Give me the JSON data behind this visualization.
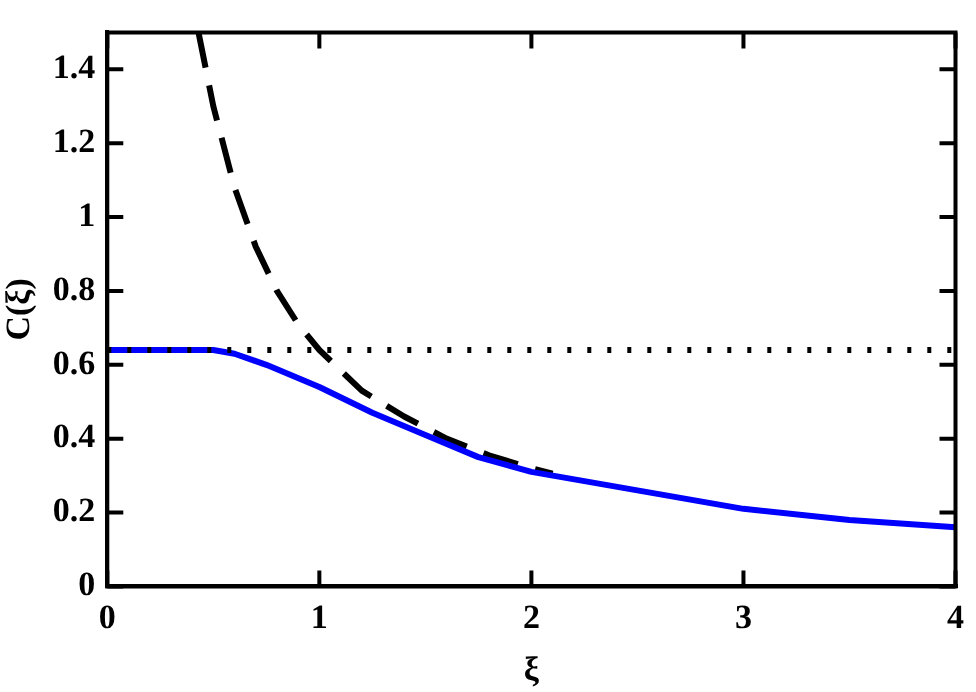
{
  "chart_data": {
    "type": "line",
    "xlabel": "ξ",
    "ylabel": "C(ξ)",
    "xlim": [
      0,
      4
    ],
    "xticks": [
      0,
      1,
      2,
      3,
      4
    ],
    "ylim": [
      0,
      1.5
    ],
    "yticks": [
      0,
      0.2,
      0.4,
      0.6,
      0.8,
      1,
      1.2,
      1.4
    ],
    "grid": false,
    "legend": false,
    "marker": "none",
    "series": [
      {
        "color": "#0000ff",
        "line_style": "solid",
        "x": [
          0,
          0.25,
          0.5,
          0.6,
          0.75,
          1,
          1.25,
          1.5,
          1.75,
          2,
          2.5,
          3,
          3.5,
          4
        ],
        "values": [
          0.64,
          0.64,
          0.64,
          0.63,
          0.6,
          0.54,
          0.47,
          0.41,
          0.35,
          0.31,
          0.26,
          0.21,
          0.18,
          0.16
        ]
      },
      {
        "color": "#000000",
        "line_style": "dashed",
        "x": [
          0.43,
          0.5,
          0.6,
          0.7,
          0.8,
          0.9,
          1,
          1.2,
          1.4,
          1.6,
          1.8,
          2,
          2.1
        ],
        "values": [
          1.5,
          1.3,
          1.08,
          0.92,
          0.8,
          0.71,
          0.64,
          0.53,
          0.46,
          0.4,
          0.355,
          0.32,
          0.305
        ]
      }
    ],
    "ref_lines": [
      {
        "axis": "y",
        "value": 0.64,
        "color": "#000000",
        "line_style": "dotted"
      }
    ]
  }
}
